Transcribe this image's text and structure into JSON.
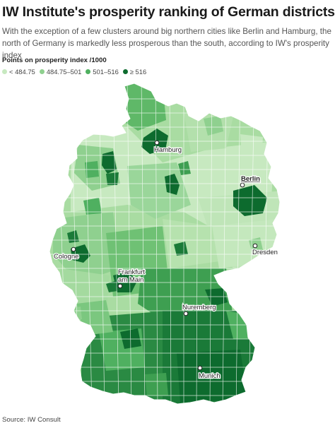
{
  "header": {
    "title": "IW Institute's prosperity ranking of German districts",
    "subtitle": "With the exception of a few clusters around big northern cities like Berlin and Hamburg, the north of Germany is markedly less prosperous than the south, according to IW's prosperity index"
  },
  "legend": {
    "title": "Points on prosperity index /1000",
    "items": [
      {
        "label": "< 484.75",
        "color": "#c7e9c0"
      },
      {
        "label": "484.75–501",
        "color": "#8fd08f"
      },
      {
        "label": "501–516",
        "color": "#4fb060"
      },
      {
        "label": "≥ 516",
        "color": "#0d6b2e"
      }
    ]
  },
  "cities": [
    {
      "name": "Hamburg",
      "underline": false
    },
    {
      "name": "Berlin",
      "underline": true
    },
    {
      "name": "Cologne",
      "underline": false
    },
    {
      "name": "Dresden",
      "underline": false
    },
    {
      "name": "Frankfurt am Main",
      "underline": false
    },
    {
      "name": "Nuremberg",
      "underline": false
    },
    {
      "name": "Munich",
      "underline": false
    }
  ],
  "footer": {
    "source": "Source: IW Consult"
  }
}
